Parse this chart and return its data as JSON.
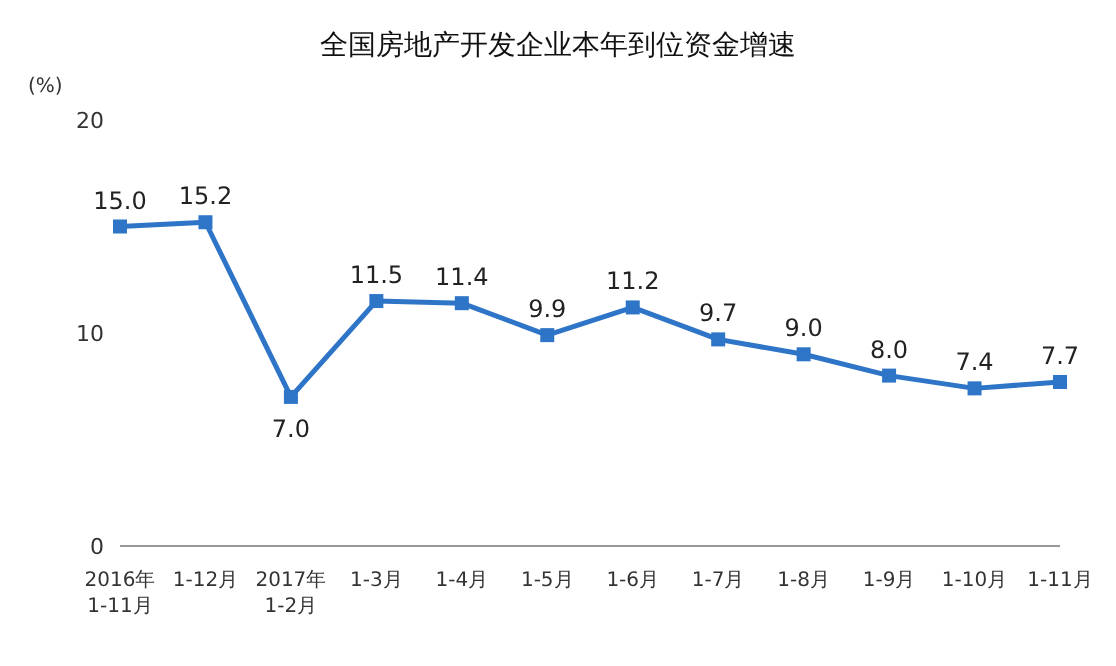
{
  "chart_data": {
    "type": "line",
    "title": "全国房地产开发企业本年到位资金增速",
    "ylabel": "(%)",
    "categories": [
      "2016年\n1-11月",
      "1-12月",
      "2017年\n1-2月",
      "1-3月",
      "1-4月",
      "1-5月",
      "1-6月",
      "1-7月",
      "1-8月",
      "1-9月",
      "1-10月",
      "1-11月"
    ],
    "series": [
      {
        "color": "#2e75c8",
        "values": [
          15.0,
          15.2,
          7.0,
          11.5,
          11.4,
          9.9,
          11.2,
          9.7,
          9.0,
          8.0,
          7.4,
          7.7
        ],
        "value_labels": [
          "15.0",
          "15.2",
          "7.0",
          "11.5",
          "11.4",
          "9.9",
          "11.2",
          "9.7",
          "9.0",
          "8.0",
          "7.4",
          "7.7"
        ]
      }
    ],
    "ylim": [
      0,
      20
    ],
    "yticks": [
      0,
      10,
      20
    ],
    "grid": false,
    "legend": false,
    "marker": "square",
    "line_style": "solid"
  }
}
